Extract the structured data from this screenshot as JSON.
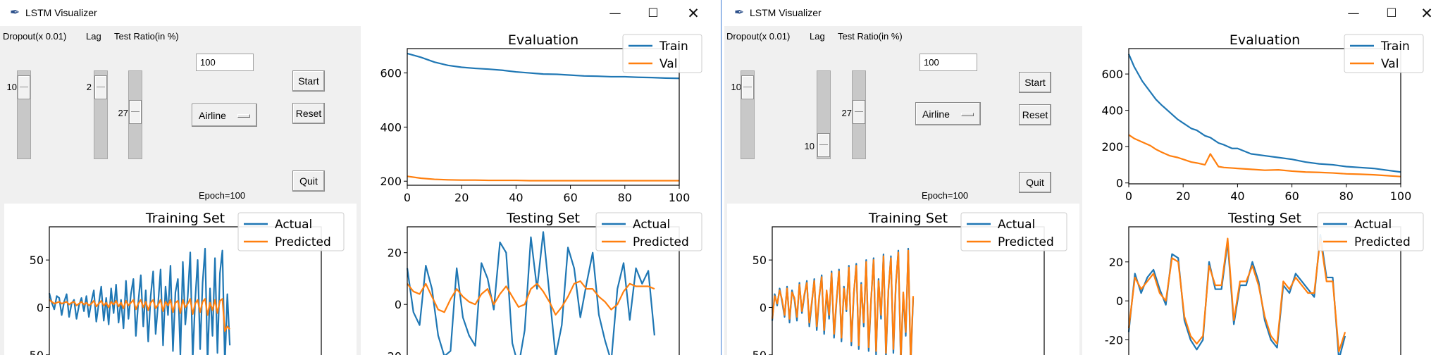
{
  "windows": [
    {
      "id": "w1",
      "title": "LSTM Visualizer",
      "controls": {
        "minimize": "—",
        "maximize": "☐",
        "close": "✕"
      },
      "headers": {
        "dropout": "Dropout(x 0.01)",
        "lag": "Lag",
        "test_ratio": "Test Ratio(in %)"
      },
      "sliders": {
        "dropout": 10,
        "lag": 2,
        "test_ratio": 27
      },
      "slider_ranges": {
        "dropout": [
          0,
          100
        ],
        "lag": [
          1,
          20
        ],
        "test_ratio": [
          0,
          100
        ]
      },
      "epoch_entry": "100",
      "dataset": "Airline",
      "buttons": {
        "start": "Start",
        "reset": "Reset",
        "quit": "Quit"
      },
      "epoch_label": "Epoch=100",
      "charts": [
        {
          "id": "training",
          "title": "Training Set",
          "legend": [
            "Actual",
            "Predicted"
          ]
        },
        {
          "id": "evaluation",
          "title": "Evaluation",
          "legend": [
            "Train",
            "Val"
          ]
        },
        {
          "id": "testing",
          "title": "Testing Set",
          "legend": [
            "Actual",
            "Predicted"
          ]
        }
      ]
    },
    {
      "id": "w2",
      "title": "LSTM Visualizer",
      "controls": {
        "minimize": "—",
        "maximize": "☐",
        "close": "✕"
      },
      "headers": {
        "dropout": "Dropout(x 0.01)",
        "lag": "Lag",
        "test_ratio": "Test Ratio(in %)"
      },
      "sliders": {
        "dropout": 10,
        "lag": 10,
        "test_ratio": 27
      },
      "slider_ranges": {
        "dropout": [
          0,
          100
        ],
        "lag": [
          1,
          11
        ],
        "test_ratio": [
          0,
          100
        ]
      },
      "epoch_entry": "100",
      "dataset": "Airline",
      "buttons": {
        "start": "Start",
        "reset": "Reset",
        "quit": "Quit"
      },
      "epoch_label": "Epoch=100",
      "charts": [
        {
          "id": "training",
          "title": "Training Set",
          "legend": [
            "Actual",
            "Predicted"
          ]
        },
        {
          "id": "evaluation",
          "title": "Evaluation",
          "legend": [
            "Train",
            "Val"
          ]
        },
        {
          "id": "testing",
          "title": "Testing Set",
          "legend": [
            "Actual",
            "Predicted"
          ]
        }
      ]
    }
  ],
  "colors": {
    "series1": "#1f77b4",
    "series2": "#ff7f0e",
    "window_bg": "#f0f0f0",
    "plot_bg": "#ffffff"
  },
  "chart_data": [
    {
      "window": 1,
      "name": "Evaluation",
      "type": "line",
      "title": "Evaluation",
      "xlim": [
        0,
        100
      ],
      "ylim": [
        185,
        690
      ],
      "xticks": [
        0,
        20,
        40,
        60,
        80,
        100
      ],
      "yticks": [
        200,
        400,
        600
      ],
      "legend": "top-right",
      "x": [
        0,
        5,
        10,
        15,
        20,
        25,
        30,
        35,
        40,
        45,
        50,
        55,
        60,
        65,
        70,
        75,
        80,
        85,
        90,
        95,
        100
      ],
      "series": [
        {
          "name": "Train",
          "values": [
            672,
            658,
            640,
            628,
            621,
            617,
            614,
            610,
            604,
            600,
            596,
            595,
            592,
            589,
            588,
            586,
            586,
            584,
            583,
            581,
            580
          ]
        },
        {
          "name": "Val",
          "values": [
            218,
            211,
            207,
            205,
            204,
            204,
            203,
            203,
            203,
            202,
            202,
            202,
            202,
            202,
            202,
            202,
            202,
            202,
            202,
            202,
            202
          ]
        }
      ]
    },
    {
      "window": 1,
      "name": "Training Set",
      "type": "line",
      "title": "Training Set",
      "xlim": [
        0,
        110
      ],
      "ylim": [
        -65,
        85
      ],
      "yticks": [
        -50,
        0,
        50
      ],
      "legend": "top-right",
      "series": [
        {
          "name": "Actual",
          "values": [
            15,
            5,
            -2,
            12,
            10,
            -8,
            6,
            14,
            -10,
            4,
            8,
            -12,
            2,
            10,
            -4,
            12,
            -10,
            6,
            18,
            -15,
            4,
            22,
            -14,
            10,
            -18,
            20,
            -6,
            24,
            -16,
            8,
            -22,
            28,
            -12,
            14,
            30,
            -30,
            6,
            34,
            -20,
            18,
            -36,
            12,
            38,
            -28,
            4,
            40,
            -40,
            22,
            -8,
            44,
            -46,
            16,
            30,
            -50,
            48,
            -18,
            12,
            58,
            -54,
            8,
            50,
            -44,
            26,
            62,
            -58,
            20,
            -30,
            52,
            -48,
            36,
            60,
            -60,
            14,
            -40
          ]
        },
        {
          "name": "Predicted",
          "values": [
            8,
            6,
            4,
            5,
            6,
            4,
            5,
            6,
            3,
            5,
            6,
            2,
            4,
            6,
            3,
            5,
            2,
            4,
            7,
            1,
            4,
            7,
            2,
            5,
            0,
            6,
            3,
            7,
            1,
            5,
            -1,
            7,
            2,
            5,
            8,
            -2,
            4,
            8,
            0,
            6,
            -3,
            5,
            8,
            -1,
            3,
            8,
            -4,
            6,
            2,
            8,
            -5,
            5,
            7,
            -6,
            8,
            0,
            4,
            9,
            -7,
            4,
            8,
            -5,
            6,
            9,
            -8,
            5,
            -3,
            8,
            -6,
            7,
            9,
            -25,
            -20,
            -23
          ]
        }
      ]
    },
    {
      "window": 1,
      "name": "Testing Set",
      "type": "line",
      "title": "Testing Set",
      "xlim": [
        0,
        44
      ],
      "ylim": [
        -25,
        30
      ],
      "yticks": [
        -20,
        0,
        20
      ],
      "legend": "top-right",
      "series": [
        {
          "name": "Actual",
          "values": [
            14,
            -3,
            -8,
            15,
            6,
            -12,
            -20,
            -18,
            14,
            -5,
            -12,
            -16,
            16,
            10,
            -2,
            24,
            20,
            -15,
            -24,
            -10,
            26,
            6,
            28,
            4,
            -20,
            -8,
            22,
            14,
            -5,
            8,
            20,
            -4,
            -14,
            -22,
            6,
            16,
            -6,
            14,
            8,
            13,
            -12
          ]
        },
        {
          "name": "Predicted",
          "values": [
            8,
            5,
            4,
            8,
            3,
            -2,
            -3,
            2,
            6,
            3,
            1,
            0,
            4,
            6,
            0,
            4,
            7,
            3,
            -1,
            0,
            6,
            8,
            5,
            1,
            -4,
            -1,
            3,
            8,
            9,
            6,
            6,
            3,
            1,
            -2,
            0,
            5,
            8,
            7,
            7,
            7,
            6
          ]
        }
      ]
    },
    {
      "window": 2,
      "name": "Evaluation",
      "type": "line",
      "title": "Evaluation",
      "xlim": [
        0,
        100
      ],
      "ylim": [
        -5,
        740
      ],
      "xticks": [
        0,
        20,
        40,
        60,
        80,
        100
      ],
      "yticks": [
        0,
        200,
        400,
        600
      ],
      "legend": "top-right",
      "x": [
        0,
        2,
        5,
        8,
        10,
        12,
        15,
        18,
        20,
        23,
        25,
        28,
        30,
        33,
        35,
        38,
        40,
        45,
        50,
        55,
        60,
        65,
        70,
        75,
        80,
        85,
        90,
        95,
        100
      ],
      "series": [
        {
          "name": "Train",
          "values": [
            710,
            640,
            560,
            500,
            460,
            430,
            390,
            350,
            330,
            300,
            290,
            260,
            250,
            220,
            210,
            190,
            190,
            160,
            150,
            140,
            130,
            115,
            105,
            100,
            90,
            85,
            80,
            70,
            60
          ]
        },
        {
          "name": "Val",
          "values": [
            265,
            245,
            225,
            205,
            185,
            170,
            150,
            140,
            130,
            115,
            110,
            100,
            160,
            90,
            85,
            82,
            80,
            75,
            70,
            72,
            65,
            60,
            58,
            55,
            50,
            48,
            45,
            40,
            35
          ]
        }
      ]
    },
    {
      "window": 2,
      "name": "Training Set",
      "type": "line",
      "title": "Training Set",
      "xlim": [
        0,
        110
      ],
      "ylim": [
        -65,
        85
      ],
      "yticks": [
        -50,
        0,
        50
      ],
      "legend": "top-right",
      "series": [
        {
          "name": "Actual",
          "values": [
            -14,
            14,
            2,
            20,
            6,
            -10,
            22,
            -16,
            18,
            8,
            -14,
            26,
            -6,
            12,
            28,
            -20,
            4,
            30,
            -24,
            10,
            34,
            -28,
            16,
            -12,
            38,
            -32,
            6,
            40,
            -36,
            22,
            -4,
            44,
            -40,
            14,
            46,
            -44,
            26,
            -20,
            50,
            -46,
            8,
            52,
            -50,
            30,
            -12,
            56,
            -52,
            18,
            54,
            -48,
            24,
            60,
            -58,
            14,
            -30,
            62,
            -60,
            10
          ]
        },
        {
          "name": "Predicted",
          "values": [
            -12,
            12,
            4,
            18,
            8,
            -8,
            20,
            -12,
            16,
            10,
            -10,
            24,
            -4,
            14,
            26,
            -16,
            6,
            28,
            -20,
            12,
            32,
            -24,
            18,
            -8,
            36,
            -28,
            8,
            38,
            -32,
            20,
            -2,
            42,
            -36,
            16,
            44,
            -40,
            24,
            -16,
            48,
            -42,
            10,
            50,
            -46,
            28,
            -8,
            54,
            -48,
            20,
            52,
            -44,
            26,
            58,
            -54,
            16,
            -26,
            60,
            -56,
            12
          ]
        }
      ]
    },
    {
      "window": 2,
      "name": "Testing Set",
      "type": "line",
      "title": "Testing Set",
      "xlim": [
        0,
        44
      ],
      "ylim": [
        -35,
        38
      ],
      "yticks": [
        -20,
        0,
        20
      ],
      "legend": "top-right",
      "series": [
        {
          "name": "Actual",
          "values": [
            -16,
            14,
            4,
            12,
            16,
            6,
            -2,
            24,
            22,
            -10,
            -20,
            -25,
            -20,
            20,
            6,
            6,
            30,
            -12,
            8,
            8,
            20,
            10,
            -10,
            -20,
            -24,
            8,
            4,
            14,
            10,
            6,
            2,
            34,
            12,
            12,
            -30,
            -18
          ]
        },
        {
          "name": "Predicted",
          "values": [
            -14,
            12,
            6,
            10,
            14,
            4,
            0,
            22,
            20,
            -8,
            -18,
            -22,
            -18,
            18,
            8,
            8,
            32,
            -10,
            10,
            10,
            18,
            8,
            -8,
            -18,
            -22,
            10,
            6,
            12,
            8,
            4,
            4,
            32,
            10,
            10,
            -26,
            -16
          ]
        }
      ]
    }
  ]
}
